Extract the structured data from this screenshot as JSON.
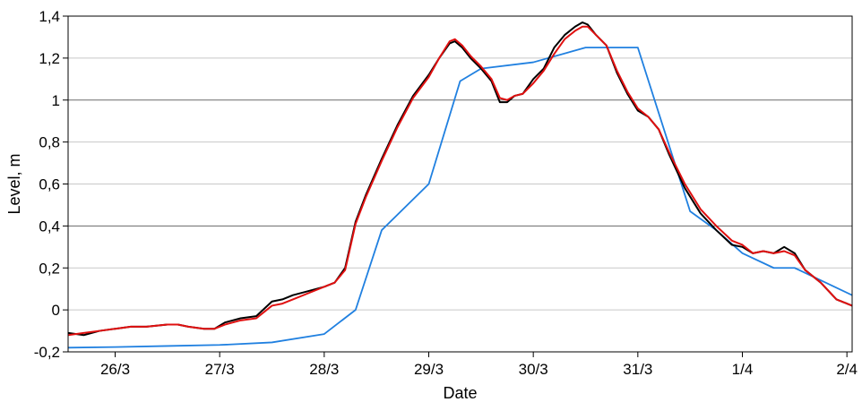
{
  "chart_data": {
    "type": "line",
    "xlabel": "Date",
    "ylabel": "Level, m",
    "x_unit": "days (fractional), 26/3 = 26.0",
    "xlim": [
      25.55,
      33.05
    ],
    "ylim": [
      -0.2,
      1.4
    ],
    "x_ticks": [
      {
        "value": 26,
        "label": "26/3"
      },
      {
        "value": 27,
        "label": "27/3"
      },
      {
        "value": 28,
        "label": "28/3"
      },
      {
        "value": 29,
        "label": "29/3"
      },
      {
        "value": 30,
        "label": "30/3"
      },
      {
        "value": 31,
        "label": "31/3"
      },
      {
        "value": 32,
        "label": "1/4"
      },
      {
        "value": 33,
        "label": "2/4"
      }
    ],
    "y_ticks": [
      {
        "value": -0.2,
        "label": "-0,2"
      },
      {
        "value": 0,
        "label": "0"
      },
      {
        "value": 0.2,
        "label": "0,2"
      },
      {
        "value": 0.4,
        "label": "0,4"
      },
      {
        "value": 0.6,
        "label": "0,6"
      },
      {
        "value": 0.8,
        "label": "0,8"
      },
      {
        "value": 1.0,
        "label": "1"
      },
      {
        "value": 1.2,
        "label": "1,2"
      },
      {
        "value": 1.4,
        "label": "1,4"
      }
    ],
    "grid": {
      "y": true,
      "x": false,
      "dark_lines_at": [
        0.4,
        1.0
      ]
    },
    "series": [
      {
        "color": "#000000",
        "x": [
          25.55,
          25.7,
          25.85,
          26.0,
          26.15,
          26.3,
          26.5,
          26.6,
          26.7,
          26.85,
          26.95,
          27.05,
          27.2,
          27.35,
          27.5,
          27.6,
          27.7,
          27.85,
          28.0,
          28.1,
          28.2,
          28.3,
          28.4,
          28.55,
          28.7,
          28.85,
          29.0,
          29.1,
          29.2,
          29.25,
          29.32,
          29.4,
          29.5,
          29.6,
          29.68,
          29.75,
          29.82,
          29.9,
          30.0,
          30.1,
          30.2,
          30.3,
          30.4,
          30.47,
          30.52,
          30.6,
          30.7,
          30.8,
          30.9,
          31.0,
          31.1,
          31.2,
          31.3,
          31.45,
          31.6,
          31.75,
          31.9,
          32.0,
          32.1,
          32.2,
          32.3,
          32.4,
          32.5,
          32.6,
          32.75,
          32.9,
          33.0,
          33.05
        ],
        "y": [
          -0.11,
          -0.12,
          -0.1,
          -0.09,
          -0.08,
          -0.08,
          -0.07,
          -0.07,
          -0.08,
          -0.09,
          -0.09,
          -0.06,
          -0.04,
          -0.03,
          0.04,
          0.05,
          0.07,
          0.09,
          0.11,
          0.13,
          0.2,
          0.42,
          0.55,
          0.72,
          0.88,
          1.02,
          1.12,
          1.2,
          1.27,
          1.28,
          1.25,
          1.2,
          1.15,
          1.09,
          0.99,
          0.99,
          1.02,
          1.03,
          1.1,
          1.15,
          1.25,
          1.31,
          1.35,
          1.37,
          1.36,
          1.31,
          1.26,
          1.13,
          1.03,
          0.95,
          0.92,
          0.86,
          0.74,
          0.58,
          0.46,
          0.38,
          0.31,
          0.3,
          0.27,
          0.28,
          0.27,
          0.3,
          0.27,
          0.19,
          0.13,
          0.05,
          0.03,
          0.02
        ]
      },
      {
        "color": "#e01010",
        "x": [
          25.55,
          25.7,
          25.85,
          26.0,
          26.15,
          26.3,
          26.5,
          26.6,
          26.7,
          26.85,
          26.95,
          27.05,
          27.2,
          27.35,
          27.5,
          27.6,
          27.7,
          27.85,
          28.0,
          28.1,
          28.2,
          28.3,
          28.4,
          28.55,
          28.7,
          28.85,
          29.0,
          29.1,
          29.2,
          29.25,
          29.32,
          29.4,
          29.5,
          29.6,
          29.68,
          29.75,
          29.82,
          29.9,
          30.0,
          30.1,
          30.2,
          30.3,
          30.4,
          30.47,
          30.52,
          30.6,
          30.7,
          30.8,
          30.9,
          31.0,
          31.1,
          31.2,
          31.3,
          31.45,
          31.6,
          31.75,
          31.9,
          32.0,
          32.1,
          32.2,
          32.3,
          32.4,
          32.5,
          32.6,
          32.75,
          32.9,
          33.0,
          33.05
        ],
        "y": [
          -0.12,
          -0.11,
          -0.1,
          -0.09,
          -0.08,
          -0.08,
          -0.07,
          -0.07,
          -0.08,
          -0.09,
          -0.09,
          -0.07,
          -0.05,
          -0.04,
          0.02,
          0.03,
          0.05,
          0.08,
          0.11,
          0.13,
          0.19,
          0.41,
          0.54,
          0.71,
          0.87,
          1.01,
          1.11,
          1.2,
          1.28,
          1.29,
          1.26,
          1.21,
          1.16,
          1.1,
          1.01,
          1.0,
          1.02,
          1.03,
          1.08,
          1.14,
          1.22,
          1.29,
          1.33,
          1.35,
          1.35,
          1.31,
          1.26,
          1.14,
          1.04,
          0.96,
          0.92,
          0.86,
          0.75,
          0.6,
          0.48,
          0.4,
          0.33,
          0.31,
          0.27,
          0.28,
          0.27,
          0.28,
          0.26,
          0.19,
          0.13,
          0.05,
          0.03,
          0.02
        ]
      },
      {
        "color": "#2080e0",
        "x": [
          25.55,
          26.0,
          26.5,
          27.0,
          27.5,
          28.0,
          28.3,
          28.55,
          29.0,
          29.3,
          29.5,
          30.0,
          30.5,
          31.0,
          31.5,
          31.75,
          32.0,
          32.3,
          32.5,
          33.05
        ],
        "y": [
          -0.18,
          -0.177,
          -0.172,
          -0.167,
          -0.155,
          -0.115,
          0.0,
          0.38,
          0.6,
          1.09,
          1.15,
          1.18,
          1.25,
          1.25,
          0.47,
          0.38,
          0.27,
          0.2,
          0.2,
          0.07
        ]
      }
    ]
  }
}
